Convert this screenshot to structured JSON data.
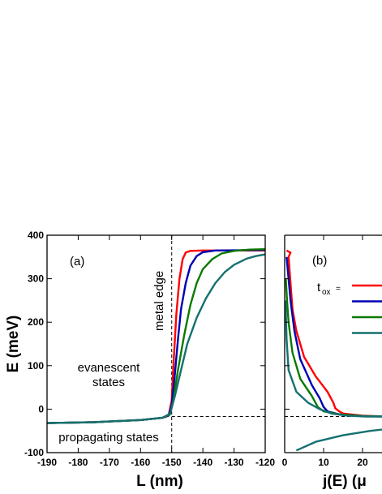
{
  "chart_data": [
    {
      "panel_label": "(a)",
      "type": "line",
      "xlabel": "L (nm)",
      "ylabel": "E (meV)",
      "xlim": [
        -190,
        -120
      ],
      "ylim": [
        -100,
        400
      ],
      "x_ticks": [
        "-190",
        "-180",
        "-170",
        "-160",
        "-150",
        "-140",
        "-130",
        "-120"
      ],
      "y_ticks": [
        "-100",
        "0",
        "100",
        "200",
        "300",
        "400"
      ],
      "annotations": {
        "metal_edge": "metal edge",
        "evanescent_1": "evanescent",
        "evanescent_2": "states",
        "propagating": "propagating states"
      },
      "reference_lines": {
        "vertical_x": -150,
        "horizontal_y": -17
      },
      "series": [
        {
          "color": "#ff0000",
          "points": [
            [
              -190,
              -32
            ],
            [
              -175,
              -30
            ],
            [
              -160,
              -25
            ],
            [
              -153,
              -20
            ],
            [
              -151,
              -15
            ],
            [
              -150,
              20
            ],
            [
              -149.3,
              120
            ],
            [
              -148.5,
              220
            ],
            [
              -147.5,
              300
            ],
            [
              -146.5,
              345
            ],
            [
              -145.5,
              360
            ],
            [
              -144,
              364
            ],
            [
              -140,
              365
            ],
            [
              -120,
              365
            ]
          ]
        },
        {
          "color": "#0000b4",
          "points": [
            [
              -190,
              -32
            ],
            [
              -175,
              -30
            ],
            [
              -160,
              -25
            ],
            [
              -153,
              -20
            ],
            [
              -151,
              -15
            ],
            [
              -150,
              10
            ],
            [
              -149,
              80
            ],
            [
              -148,
              160
            ],
            [
              -147,
              230
            ],
            [
              -145.5,
              290
            ],
            [
              -144,
              330
            ],
            [
              -142,
              352
            ],
            [
              -140,
              361
            ],
            [
              -136,
              365
            ],
            [
              -120,
              366
            ]
          ]
        },
        {
          "color": "#0a7a00",
          "points": [
            [
              -190,
              -32
            ],
            [
              -175,
              -30
            ],
            [
              -160,
              -25
            ],
            [
              -153,
              -20
            ],
            [
              -150.5,
              -12
            ],
            [
              -149.5,
              20
            ],
            [
              -148,
              90
            ],
            [
              -146,
              170
            ],
            [
              -144,
              240
            ],
            [
              -142,
              290
            ],
            [
              -140,
              322
            ],
            [
              -137,
              345
            ],
            [
              -134,
              358
            ],
            [
              -130,
              364
            ],
            [
              -125,
              367
            ],
            [
              -120,
              368
            ]
          ]
        },
        {
          "color": "#157070",
          "points": [
            [
              -190,
              -32
            ],
            [
              -175,
              -30
            ],
            [
              -160,
              -25
            ],
            [
              -153,
              -20
            ],
            [
              -150.5,
              -10
            ],
            [
              -149,
              30
            ],
            [
              -147,
              90
            ],
            [
              -145,
              150
            ],
            [
              -142,
              210
            ],
            [
              -139,
              255
            ],
            [
              -136,
              290
            ],
            [
              -133,
              315
            ],
            [
              -130,
              332
            ],
            [
              -126,
              346
            ],
            [
              -123,
              352
            ],
            [
              -120,
              356
            ]
          ]
        }
      ]
    },
    {
      "panel_label": "(b)",
      "type": "line",
      "xlabel": "j(E) (μ",
      "xlim": [
        0,
        30
      ],
      "ylim": [
        -100,
        400
      ],
      "x_ticks": [
        "0",
        "10",
        "20"
      ],
      "legend_label_main": "t",
      "legend_label_sub": "ox",
      "legend_label_eq": "=",
      "reference_lines": {
        "horizontal_y": -17
      },
      "series": [
        {
          "color": "#ff0000",
          "points": [
            [
              0.5,
              365
            ],
            [
              1.5,
              360
            ],
            [
              1.0,
              350
            ],
            [
              2.0,
              230
            ],
            [
              3,
              180
            ],
            [
              5,
              120
            ],
            [
              8,
              75
            ],
            [
              11,
              40
            ],
            [
              12.5,
              15
            ],
            [
              13,
              2
            ],
            [
              14,
              -5
            ],
            [
              15,
              -10
            ],
            [
              20,
              -15
            ],
            [
              26,
              -17
            ]
          ]
        },
        {
          "color": "#0000b4",
          "points": [
            [
              0.5,
              350
            ],
            [
              1,
              300
            ],
            [
              1.5,
              250
            ],
            [
              2.5,
              180
            ],
            [
              4,
              115
            ],
            [
              7,
              55
            ],
            [
              9,
              25
            ],
            [
              10,
              5
            ],
            [
              11,
              -5
            ],
            [
              14,
              -12
            ],
            [
              20,
              -16
            ],
            [
              26,
              -17
            ]
          ]
        },
        {
          "color": "#0a7a00",
          "points": [
            [
              0.3,
              300
            ],
            [
              0.6,
              250
            ],
            [
              1,
              200
            ],
            [
              2,
              130
            ],
            [
              4,
              70
            ],
            [
              7,
              30
            ],
            [
              8.5,
              5
            ],
            [
              10,
              -5
            ],
            [
              14,
              -12
            ],
            [
              20,
              -16
            ],
            [
              26,
              -17
            ]
          ]
        },
        {
          "color": "#157070",
          "points": [
            [
              0.2,
              250
            ],
            [
              0.5,
              160
            ],
            [
              1,
              90
            ],
            [
              3,
              40
            ],
            [
              6,
              15
            ],
            [
              9,
              0
            ],
            [
              12,
              -10
            ],
            [
              16,
              -15
            ],
            [
              21,
              -17
            ],
            [
              26,
              -17
            ]
          ]
        },
        {
          "color": "#157070",
          "points": [
            [
              3,
              -95
            ],
            [
              8,
              -75
            ],
            [
              15,
              -60
            ],
            [
              22,
              -50
            ],
            [
              30,
              -42
            ],
            [
              34,
              -38
            ]
          ]
        }
      ]
    }
  ]
}
